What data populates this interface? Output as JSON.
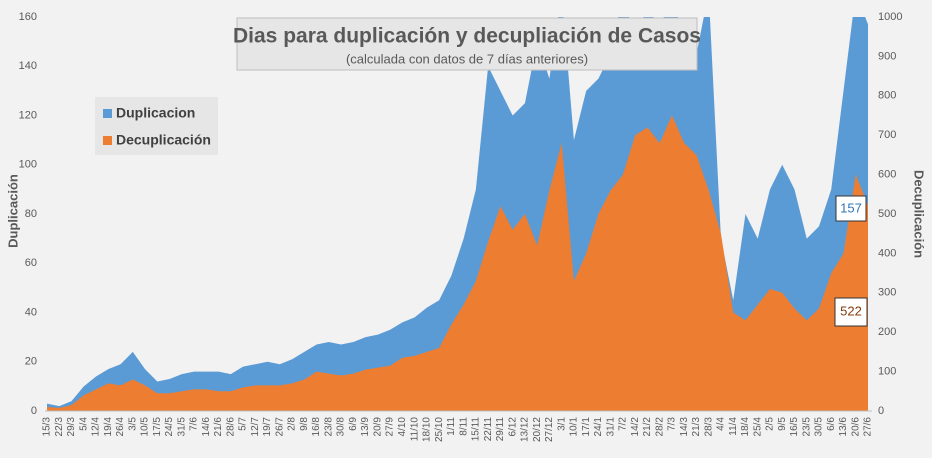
{
  "chart_data": {
    "type": "area",
    "title": "Dias para duplicación y decupliación de Casos",
    "subtitle": "(calculada con datos de 7 días anteriores)",
    "ylabel": "Duplicación",
    "y2label": "Decuplicación",
    "categories": [
      "15/3",
      "22/3",
      "29/3",
      "5/4",
      "12/4",
      "19/4",
      "26/4",
      "3/5",
      "10/5",
      "17/5",
      "24/5",
      "31/5",
      "7/6",
      "14/6",
      "21/6",
      "28/6",
      "5/7",
      "12/7",
      "19/7",
      "26/7",
      "2/8",
      "9/8",
      "16/8",
      "23/8",
      "30/8",
      "6/9",
      "13/9",
      "20/9",
      "27/9",
      "4/10",
      "11/10",
      "18/10",
      "25/10",
      "1/11",
      "8/11",
      "15/11",
      "22/11",
      "29/11",
      "6/12",
      "13/12",
      "20/12",
      "27/12",
      "3/1",
      "10/1",
      "17/1",
      "24/1",
      "31/1",
      "7/2",
      "14/2",
      "21/2",
      "28/2",
      "7/3",
      "14/3",
      "21/3",
      "28/3",
      "4/4",
      "11/4",
      "18/4",
      "25/4",
      "2/5",
      "9/5",
      "16/5",
      "23/5",
      "30/5",
      "6/6",
      "13/6",
      "20/6",
      "27/6"
    ],
    "series": [
      {
        "name": "Duplicacion",
        "color": "#5b9bd5",
        "values": [
          3,
          2,
          4,
          10,
          14,
          17,
          19,
          24,
          17,
          12,
          13,
          15,
          16,
          16,
          16,
          15,
          18,
          19,
          20,
          19,
          21,
          24,
          27,
          28,
          27,
          28,
          30,
          31,
          33,
          36,
          38,
          42,
          45,
          55,
          70,
          90,
          140,
          130,
          120,
          125,
          150,
          135,
          170,
          110,
          130,
          135,
          145,
          170,
          150,
          165,
          155,
          170,
          150,
          145,
          170,
          70,
          45,
          80,
          70,
          90,
          100,
          90,
          70,
          75,
          90,
          130,
          170,
          157
        ]
      },
      {
        "name": "Decuplicación",
        "color": "#ed7d31",
        "axis": "y2",
        "values": [
          10,
          8,
          15,
          40,
          55,
          70,
          65,
          80,
          65,
          45,
          45,
          50,
          55,
          55,
          50,
          50,
          60,
          65,
          65,
          65,
          70,
          80,
          100,
          95,
          90,
          95,
          105,
          110,
          115,
          135,
          140,
          150,
          160,
          220,
          270,
          330,
          430,
          520,
          460,
          500,
          420,
          560,
          680,
          330,
          400,
          500,
          560,
          600,
          700,
          720,
          680,
          750,
          680,
          650,
          560,
          450,
          250,
          230,
          270,
          310,
          300,
          260,
          230,
          260,
          350,
          400,
          600,
          522
        ]
      }
    ],
    "ylim": [
      0,
      160
    ],
    "yticks": [
      0,
      20,
      40,
      60,
      80,
      100,
      120,
      140,
      160
    ],
    "y2lim": [
      0,
      1000
    ],
    "y2ticks": [
      0,
      100,
      200,
      300,
      400,
      500,
      600,
      700,
      800,
      900,
      1000
    ],
    "grid": false,
    "legend": "upper left"
  }
}
